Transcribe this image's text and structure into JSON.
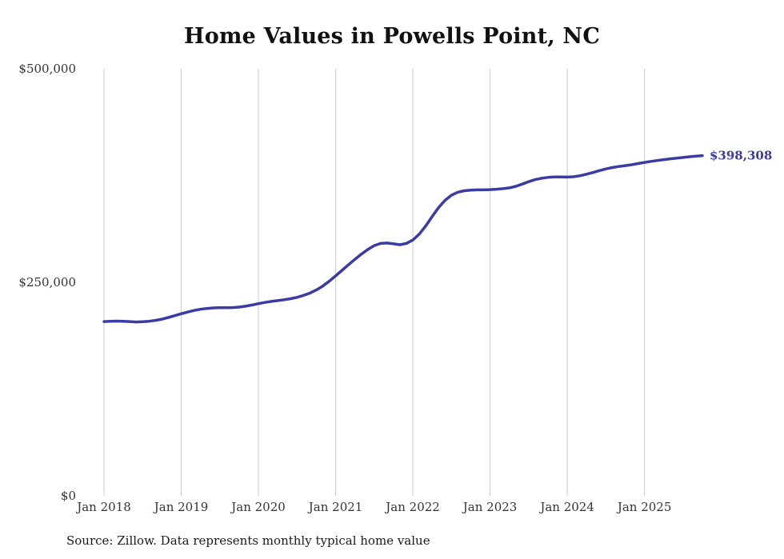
{
  "source_note": "Source: Zillow. Data represents monthly typical home value",
  "chart_data": {
    "type": "line",
    "title": "Home Values in Powells Point, NC",
    "series_name": "Typical home value",
    "frequency": "monthly",
    "x_start": "2018-01",
    "x_end": "2025-10",
    "values": [
      204000,
      204400,
      204600,
      204400,
      204000,
      203600,
      203800,
      204400,
      205400,
      206800,
      208800,
      211000,
      213200,
      215200,
      217000,
      218400,
      219400,
      220000,
      220200,
      220200,
      220400,
      221000,
      222000,
      223400,
      225000,
      226400,
      227600,
      228600,
      229600,
      230800,
      232400,
      234600,
      237400,
      241000,
      245600,
      251200,
      257500,
      264000,
      270500,
      277000,
      283000,
      288500,
      293000,
      295500,
      296000,
      295000,
      294000,
      295500,
      299500,
      306500,
      316000,
      327000,
      337500,
      346000,
      352000,
      355500,
      357200,
      358000,
      358200,
      358200,
      358500,
      359000,
      359600,
      360600,
      362400,
      365000,
      367800,
      370200,
      371800,
      372800,
      373400,
      373400,
      373200,
      373600,
      374800,
      376600,
      378600,
      380800,
      382800,
      384400,
      385600,
      386600,
      387600,
      389000,
      390400,
      391600,
      392600,
      393600,
      394600,
      395400,
      396200,
      397000,
      397700,
      398308
    ],
    "ylim": [
      0,
      500000
    ],
    "yticks": [
      0,
      250000,
      500000
    ],
    "ytick_labels": [
      "$0",
      "$250,000",
      "$500,000"
    ],
    "xtick_indices": [
      0,
      12,
      24,
      36,
      48,
      60,
      72,
      84
    ],
    "xtick_labels": [
      "Jan 2018",
      "Jan 2019",
      "Jan 2020",
      "Jan 2021",
      "Jan 2022",
      "Jan 2023",
      "Jan 2024",
      "Jan 2025"
    ],
    "end_label": "$398,308",
    "line_color": "#3b3ba5",
    "grid_color": "#cccccc",
    "text_color": "#333333",
    "grid": "vertical",
    "legend": "none"
  }
}
